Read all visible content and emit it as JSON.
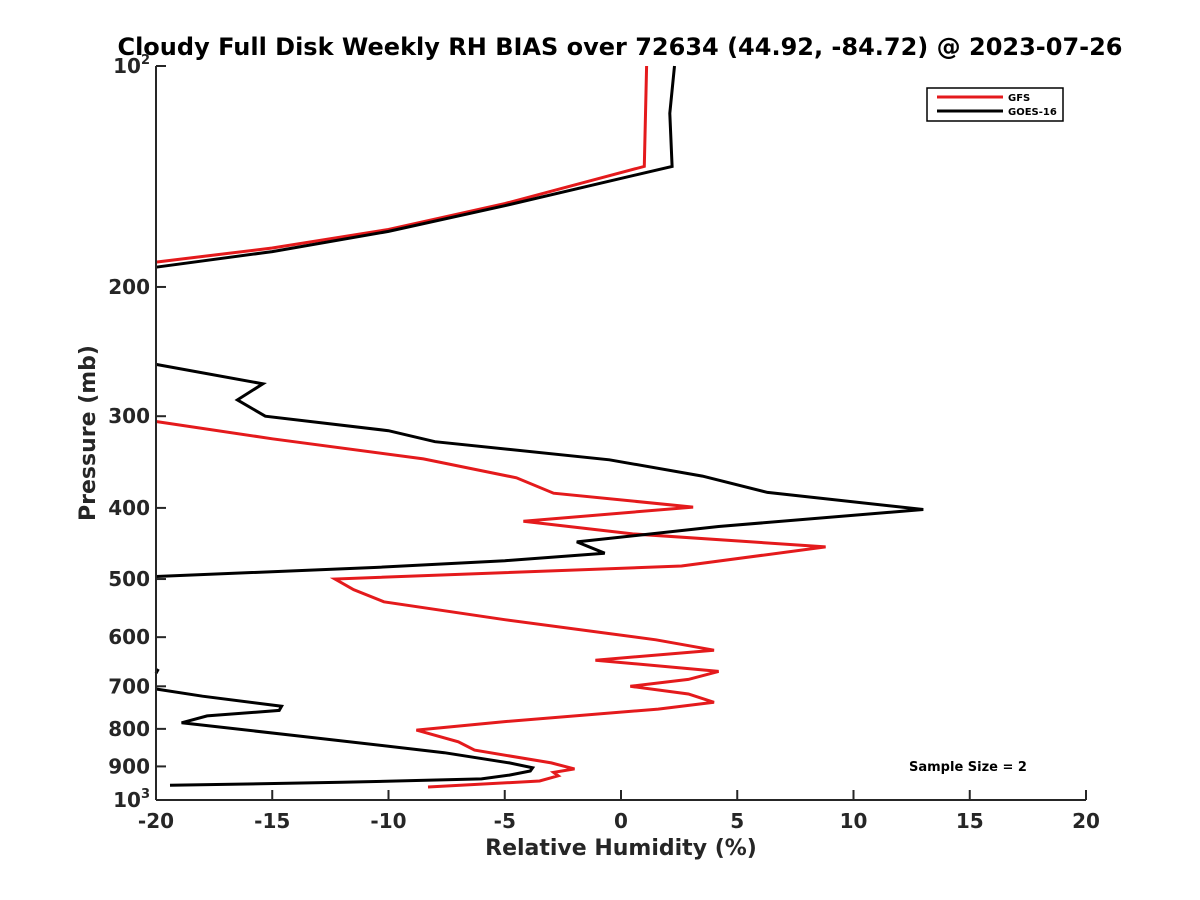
{
  "chart_data": {
    "type": "line",
    "title": "Cloudy Full Disk Weekly RH BIAS over 72634 (44.92, -84.72) @ 2023-07-26",
    "xlabel": "Relative Humidity (%)",
    "ylabel": "Pressure (mb)",
    "xlim": [
      -20,
      20
    ],
    "ylim": [
      1000,
      100
    ],
    "y_scale": "log",
    "y_reversed": true,
    "x_ticks": [
      "-20",
      "-15",
      "-10",
      "-5",
      "0",
      "5",
      "10",
      "15",
      "20"
    ],
    "y_ticks": [
      {
        "value": 100,
        "base": "10",
        "exp": "2"
      },
      {
        "value": 200,
        "label": "200"
      },
      {
        "value": 300,
        "label": "300"
      },
      {
        "value": 400,
        "label": "400"
      },
      {
        "value": 500,
        "label": "500"
      },
      {
        "value": 600,
        "label": "600"
      },
      {
        "value": 700,
        "label": "700"
      },
      {
        "value": 800,
        "label": "800"
      },
      {
        "value": 900,
        "label": "900"
      },
      {
        "value": 1000,
        "base": "10",
        "exp": "3"
      }
    ],
    "legend_position": "top-right",
    "annotation": "Sample Size = 2",
    "series": [
      {
        "name": "GFS",
        "color": "#e41a1c",
        "segments": [
          [
            [
              1.1,
              100
            ],
            [
              1.0,
              137
            ],
            [
              -5,
              154
            ],
            [
              -10,
              167
            ],
            [
              -15,
              177
            ],
            [
              -20,
              185
            ]
          ],
          [
            [
              -20,
              305
            ],
            [
              -15,
              322
            ],
            [
              -8.5,
              343
            ],
            [
              -4.5,
              364
            ],
            [
              -2.9,
              382
            ],
            [
              3.1,
              399
            ],
            [
              -4.2,
              417
            ],
            [
              0.5,
              434
            ],
            [
              8.8,
              452
            ],
            [
              2.6,
              480
            ],
            [
              -12.3,
              500
            ],
            [
              -11.5,
              517
            ],
            [
              -10.2,
              537
            ],
            [
              -5,
              568
            ],
            [
              1.5,
              605
            ],
            [
              4,
              625
            ],
            [
              -1.1,
              645
            ],
            [
              4.2,
              668
            ],
            [
              2.9,
              685
            ],
            [
              0.4,
              700
            ],
            [
              2.9,
              717
            ],
            [
              4,
              736
            ],
            [
              1.6,
              752
            ],
            [
              -5,
              782
            ],
            [
              -8.8,
              803
            ],
            [
              -7,
              833
            ],
            [
              -6.3,
              855
            ],
            [
              -3,
              890
            ],
            [
              -2,
              907
            ],
            [
              -2.9,
              917
            ],
            [
              -2.7,
              927
            ],
            [
              -3.5,
              942
            ],
            [
              -8.3,
              960
            ]
          ]
        ]
      },
      {
        "name": "GOES-16",
        "color": "#000000",
        "segments": [
          [
            [
              2.3,
              100
            ],
            [
              2.1,
              116
            ],
            [
              2.2,
              137
            ],
            [
              -5,
              155
            ],
            [
              -10,
              168
            ],
            [
              -15,
              179
            ],
            [
              -20,
              188
            ]
          ],
          [
            [
              -20,
              255
            ],
            [
              -15.4,
              271
            ],
            [
              -16.5,
              285
            ],
            [
              -15.3,
              300
            ],
            [
              -10,
              314
            ],
            [
              -8,
              325
            ],
            [
              -0.5,
              344
            ],
            [
              3.5,
              362
            ],
            [
              6.3,
              381
            ],
            [
              13,
              402
            ],
            [
              4.2,
              424
            ],
            [
              -1.9,
              445
            ],
            [
              -0.7,
              461
            ],
            [
              -5,
              472
            ],
            [
              -10.5,
              482
            ],
            [
              -20,
              496
            ]
          ],
          [
            [
              -19.9,
              663
            ],
            [
              -20,
              672
            ]
          ],
          [
            [
              -20,
              706
            ],
            [
              -18,
              722
            ],
            [
              -14.6,
              745
            ],
            [
              -14.7,
              755
            ],
            [
              -17.8,
              768
            ],
            [
              -18.9,
              785
            ],
            [
              -14,
              817
            ],
            [
              -7.6,
              862
            ],
            [
              -4.8,
              890
            ],
            [
              -3.8,
              904
            ],
            [
              -3.9,
              913
            ],
            [
              -4.8,
              925
            ],
            [
              -6,
              936
            ],
            [
              -12,
              946
            ],
            [
              -19.4,
              955
            ]
          ]
        ]
      }
    ]
  }
}
